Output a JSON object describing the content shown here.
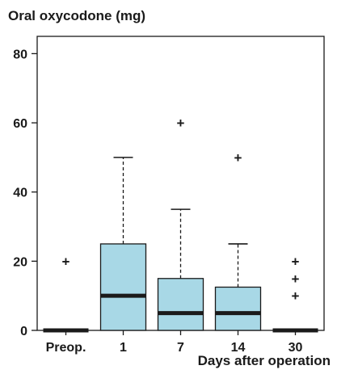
{
  "chart_data": {
    "type": "box",
    "title": "",
    "ylabel": "Oral oxycodone (mg)",
    "xlabel": "Days after operation",
    "ylim": [
      0,
      85
    ],
    "yticks": [
      0,
      20,
      40,
      60,
      80
    ],
    "categories": [
      "Preop.",
      "1",
      "7",
      "14",
      "30"
    ],
    "boxes": [
      {
        "category": "Preop.",
        "whisker_low": 0,
        "q1": 0,
        "median": 0,
        "q3": 0,
        "whisker_high": 0,
        "outliers": [
          20
        ]
      },
      {
        "category": "1",
        "whisker_low": 0,
        "q1": 0,
        "median": 10,
        "q3": 25,
        "whisker_high": 50,
        "outliers": []
      },
      {
        "category": "7",
        "whisker_low": 0,
        "q1": 0,
        "median": 5,
        "q3": 15,
        "whisker_high": 35,
        "outliers": [
          60
        ]
      },
      {
        "category": "14",
        "whisker_low": 0,
        "q1": 0,
        "median": 5,
        "q3": 12.5,
        "whisker_high": 25,
        "outliers": [
          50
        ]
      },
      {
        "category": "30",
        "whisker_low": 0,
        "q1": 0,
        "median": 0,
        "q3": 0,
        "whisker_high": 0,
        "outliers": [
          10,
          15,
          20
        ]
      }
    ],
    "colors": {
      "box_fill": "#a8d8e6",
      "stroke": "#1a1a1a",
      "median": "#1a1a1a"
    },
    "grid": false,
    "legend": "none"
  }
}
